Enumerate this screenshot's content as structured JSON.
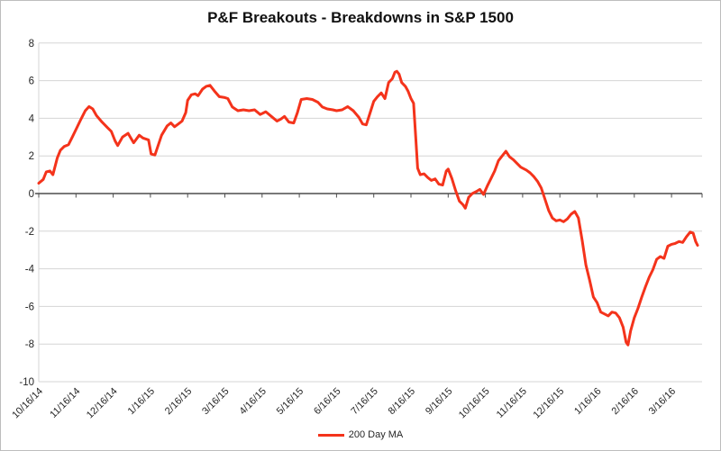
{
  "colors": {
    "line": "#f4331b",
    "grid": "#d5d5d5",
    "zero_axis": "#4d4d4d",
    "value_axis": "#d5d5d5",
    "tick_label": "#262626",
    "title": "#111111",
    "background": "#ffffff",
    "frame_border": "#bdbdbd"
  },
  "legend": {
    "label": "200 Day MA"
  },
  "chart_data": {
    "type": "line",
    "title": "P&F Breakouts - Breakdowns in S&P 1500",
    "xlabel": "",
    "ylabel": "",
    "ylim": [
      -10,
      8
    ],
    "y_ticks": [
      8,
      6,
      4,
      2,
      0,
      -2,
      -4,
      -6,
      -8,
      -10
    ],
    "grid": "horizontal",
    "legend_position": "bottom-center",
    "x_tick_labels": [
      "10/16/14",
      "11/16/14",
      "12/16/14",
      "1/16/15",
      "2/16/15",
      "3/16/15",
      "4/16/15",
      "5/16/15",
      "6/16/15",
      "7/16/15",
      "8/16/15",
      "9/16/15",
      "10/16/15",
      "11/16/15",
      "12/16/15",
      "1/16/16",
      "2/16/16",
      "3/16/16"
    ],
    "x_description": "x values below are in months after 10/16/14; one x-axis tick per month",
    "series": [
      {
        "name": "200 Day MA",
        "color": "#f4331b",
        "points": [
          [
            0.0,
            0.55
          ],
          [
            0.12,
            0.75
          ],
          [
            0.2,
            1.15
          ],
          [
            0.3,
            1.2
          ],
          [
            0.38,
            1.0
          ],
          [
            0.5,
            1.9
          ],
          [
            0.58,
            2.3
          ],
          [
            0.68,
            2.5
          ],
          [
            0.8,
            2.6
          ],
          [
            0.9,
            3.0
          ],
          [
            1.0,
            3.4
          ],
          [
            1.12,
            3.9
          ],
          [
            1.25,
            4.4
          ],
          [
            1.35,
            4.62
          ],
          [
            1.45,
            4.5
          ],
          [
            1.55,
            4.15
          ],
          [
            1.7,
            3.8
          ],
          [
            1.85,
            3.5
          ],
          [
            1.95,
            3.3
          ],
          [
            2.05,
            2.8
          ],
          [
            2.12,
            2.55
          ],
          [
            2.25,
            3.0
          ],
          [
            2.4,
            3.2
          ],
          [
            2.55,
            2.7
          ],
          [
            2.7,
            3.1
          ],
          [
            2.8,
            2.95
          ],
          [
            2.95,
            2.85
          ],
          [
            3.02,
            2.1
          ],
          [
            3.12,
            2.05
          ],
          [
            3.3,
            3.1
          ],
          [
            3.45,
            3.6
          ],
          [
            3.55,
            3.75
          ],
          [
            3.65,
            3.55
          ],
          [
            3.75,
            3.7
          ],
          [
            3.85,
            3.85
          ],
          [
            3.95,
            4.3
          ],
          [
            4.0,
            4.95
          ],
          [
            4.1,
            5.25
          ],
          [
            4.2,
            5.3
          ],
          [
            4.28,
            5.2
          ],
          [
            4.4,
            5.55
          ],
          [
            4.5,
            5.7
          ],
          [
            4.6,
            5.75
          ],
          [
            4.72,
            5.45
          ],
          [
            4.85,
            5.15
          ],
          [
            5.0,
            5.1
          ],
          [
            5.08,
            5.05
          ],
          [
            5.2,
            4.6
          ],
          [
            5.35,
            4.4
          ],
          [
            5.5,
            4.45
          ],
          [
            5.65,
            4.4
          ],
          [
            5.8,
            4.45
          ],
          [
            5.95,
            4.2
          ],
          [
            6.1,
            4.35
          ],
          [
            6.25,
            4.1
          ],
          [
            6.4,
            3.85
          ],
          [
            6.5,
            3.95
          ],
          [
            6.6,
            4.1
          ],
          [
            6.72,
            3.8
          ],
          [
            6.85,
            3.75
          ],
          [
            6.95,
            4.3
          ],
          [
            7.05,
            5.0
          ],
          [
            7.2,
            5.05
          ],
          [
            7.35,
            5.0
          ],
          [
            7.5,
            4.85
          ],
          [
            7.62,
            4.6
          ],
          [
            7.75,
            4.5
          ],
          [
            7.9,
            4.45
          ],
          [
            8.0,
            4.4
          ],
          [
            8.15,
            4.45
          ],
          [
            8.3,
            4.62
          ],
          [
            8.45,
            4.4
          ],
          [
            8.6,
            4.05
          ],
          [
            8.7,
            3.7
          ],
          [
            8.8,
            3.65
          ],
          [
            8.92,
            4.4
          ],
          [
            9.0,
            4.9
          ],
          [
            9.1,
            5.15
          ],
          [
            9.2,
            5.35
          ],
          [
            9.3,
            5.05
          ],
          [
            9.4,
            5.9
          ],
          [
            9.5,
            6.1
          ],
          [
            9.57,
            6.45
          ],
          [
            9.62,
            6.5
          ],
          [
            9.68,
            6.35
          ],
          [
            9.75,
            5.9
          ],
          [
            9.85,
            5.7
          ],
          [
            9.92,
            5.45
          ],
          [
            10.0,
            5.05
          ],
          [
            10.07,
            4.8
          ],
          [
            10.13,
            2.9
          ],
          [
            10.18,
            1.35
          ],
          [
            10.25,
            1.0
          ],
          [
            10.35,
            1.05
          ],
          [
            10.45,
            0.85
          ],
          [
            10.55,
            0.7
          ],
          [
            10.65,
            0.78
          ],
          [
            10.75,
            0.5
          ],
          [
            10.85,
            0.45
          ],
          [
            10.95,
            1.2
          ],
          [
            11.0,
            1.3
          ],
          [
            11.1,
            0.8
          ],
          [
            11.2,
            0.15
          ],
          [
            11.3,
            -0.4
          ],
          [
            11.4,
            -0.6
          ],
          [
            11.46,
            -0.78
          ],
          [
            11.55,
            -0.2
          ],
          [
            11.65,
            0.0
          ],
          [
            11.75,
            0.1
          ],
          [
            11.85,
            0.22
          ],
          [
            11.95,
            -0.05
          ],
          [
            12.05,
            0.4
          ],
          [
            12.15,
            0.8
          ],
          [
            12.25,
            1.2
          ],
          [
            12.35,
            1.75
          ],
          [
            12.45,
            2.0
          ],
          [
            12.55,
            2.25
          ],
          [
            12.65,
            1.95
          ],
          [
            12.75,
            1.8
          ],
          [
            12.85,
            1.6
          ],
          [
            12.95,
            1.4
          ],
          [
            13.0,
            1.35
          ],
          [
            13.1,
            1.25
          ],
          [
            13.2,
            1.1
          ],
          [
            13.3,
            0.9
          ],
          [
            13.4,
            0.65
          ],
          [
            13.5,
            0.3
          ],
          [
            13.6,
            -0.3
          ],
          [
            13.7,
            -0.9
          ],
          [
            13.8,
            -1.3
          ],
          [
            13.9,
            -1.45
          ],
          [
            14.0,
            -1.4
          ],
          [
            14.1,
            -1.5
          ],
          [
            14.2,
            -1.35
          ],
          [
            14.3,
            -1.1
          ],
          [
            14.4,
            -0.95
          ],
          [
            14.5,
            -1.3
          ],
          [
            14.6,
            -2.5
          ],
          [
            14.7,
            -3.8
          ],
          [
            14.8,
            -4.6
          ],
          [
            14.9,
            -5.5
          ],
          [
            15.0,
            -5.8
          ],
          [
            15.1,
            -6.3
          ],
          [
            15.2,
            -6.4
          ],
          [
            15.3,
            -6.5
          ],
          [
            15.4,
            -6.3
          ],
          [
            15.5,
            -6.35
          ],
          [
            15.6,
            -6.6
          ],
          [
            15.7,
            -7.1
          ],
          [
            15.78,
            -7.9
          ],
          [
            15.83,
            -8.05
          ],
          [
            15.9,
            -7.3
          ],
          [
            16.0,
            -6.6
          ],
          [
            16.1,
            -6.1
          ],
          [
            16.2,
            -5.5
          ],
          [
            16.3,
            -4.95
          ],
          [
            16.4,
            -4.45
          ],
          [
            16.5,
            -4.05
          ],
          [
            16.6,
            -3.5
          ],
          [
            16.7,
            -3.35
          ],
          [
            16.8,
            -3.45
          ],
          [
            16.9,
            -2.8
          ],
          [
            17.0,
            -2.7
          ],
          [
            17.1,
            -2.65
          ],
          [
            17.2,
            -2.55
          ],
          [
            17.3,
            -2.6
          ],
          [
            17.4,
            -2.3
          ],
          [
            17.5,
            -2.05
          ],
          [
            17.58,
            -2.1
          ],
          [
            17.65,
            -2.55
          ],
          [
            17.7,
            -2.75
          ]
        ]
      }
    ]
  }
}
